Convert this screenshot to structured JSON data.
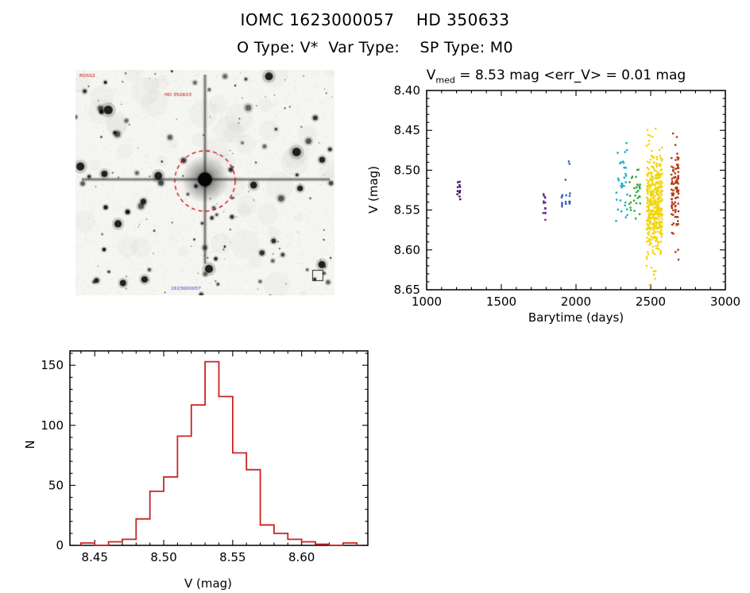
{
  "page": {
    "title": "IOMC 1623000057    HD 350633",
    "subtitle": "O Type: V*  Var Type:    SP Type: M0"
  },
  "finding_chart": {
    "target_label": "HD 350633",
    "corner_label": "POSS2",
    "footer_label": "1623000057",
    "target_circle_color": "#d40000",
    "annotation_color": "#cc0000",
    "footer_color": "#3a3ab8"
  },
  "chart_data": [
    {
      "type": "scatter",
      "title": {
        "prefix": "V",
        "subscript": "med",
        "suffix": " = 8.53 mag <err_V> = 0.01 mag"
      },
      "v_med_mag": 8.53,
      "err_v_mag": 0.01,
      "xlabel": "Barytime (days)",
      "ylabel": "V (mag)",
      "xlim": [
        1000,
        3000
      ],
      "ylim": [
        8.4,
        8.65
      ],
      "y_inverted": true,
      "xticks": [
        1000,
        1500,
        2000,
        2500,
        3000
      ],
      "yticks": [
        8.4,
        8.45,
        8.5,
        8.55,
        8.6,
        8.65
      ],
      "xtick_decimals": 0,
      "ytick_decimals": 2,
      "x_minor": 100,
      "y_minor": 0.01,
      "legend": "none",
      "grid": false,
      "clusters": [
        {
          "name": "epoch-1",
          "color": "#44106a",
          "columns": [
            1208,
            1222
          ],
          "v_center": 8.524,
          "v_sigma": 0.007,
          "v_min": 8.512,
          "v_max": 8.537,
          "n": 12
        },
        {
          "name": "epoch-2",
          "color": "#6a2d8f",
          "columns": [
            1782,
            1794
          ],
          "v_center": 8.546,
          "v_sigma": 0.011,
          "v_min": 8.526,
          "v_max": 8.569,
          "n": 14
        },
        {
          "name": "epoch-3",
          "color": "#2f5fc4",
          "columns": [
            1906,
            1934,
            1958
          ],
          "v_center": 8.537,
          "v_sigma": 0.005,
          "v_min": 8.524,
          "v_max": 8.549,
          "n": 16,
          "extra_points": [
            [
              1952,
              8.489
            ],
            [
              1956,
              8.492
            ],
            [
              1930,
              8.512
            ]
          ]
        },
        {
          "name": "epoch-4",
          "color": "#10b2c6",
          "x_range": [
            2268,
            2345
          ],
          "v_center": 8.517,
          "v_sigma": 0.026,
          "v_min": 8.452,
          "v_max": 8.566,
          "n": 34
        },
        {
          "name": "epoch-5",
          "color": "#33a83a",
          "x_range": [
            2352,
            2430
          ],
          "v_center": 8.528,
          "v_sigma": 0.017,
          "v_min": 8.488,
          "v_max": 8.562,
          "n": 30
        },
        {
          "name": "epoch-6",
          "color": "#f2d60c",
          "x_range": [
            2472,
            2578
          ],
          "v_center": 8.546,
          "v_sigma": 0.034,
          "v_min": 8.432,
          "v_max": 8.648,
          "n": 430
        },
        {
          "name": "epoch-7",
          "color": "#b23a18",
          "columns": [
            2642,
            2652,
            2666,
            2676,
            2684
          ],
          "v_center": 8.527,
          "v_sigma": 0.036,
          "v_min": 8.452,
          "v_max": 8.627,
          "n": 95
        }
      ]
    },
    {
      "type": "histogram",
      "color": "#cc2222",
      "xlabel": "V (mag)",
      "ylabel": "N",
      "xlim": [
        8.432,
        8.648
      ],
      "ylim": [
        0,
        162
      ],
      "xticks": [
        8.45,
        8.5,
        8.55,
        8.6
      ],
      "yticks": [
        0,
        50,
        100,
        150
      ],
      "xtick_decimals": 2,
      "ytick_decimals": 0,
      "x_minor": 0.01,
      "y_minor": 10,
      "bin_start": 8.44,
      "bin_width": 0.01,
      "counts": [
        2,
        0,
        3,
        5,
        22,
        45,
        57,
        91,
        117,
        153,
        124,
        77,
        63,
        17,
        10,
        5,
        3,
        1,
        0,
        2
      ],
      "grid": false
    }
  ]
}
